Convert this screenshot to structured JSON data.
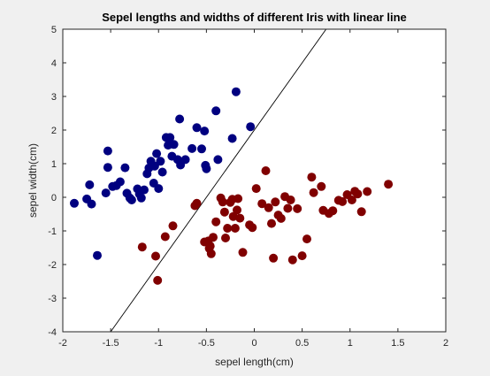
{
  "chart_data": {
    "type": "scatter",
    "title": "Sepel lengths and widths of different Iris with linear line",
    "xlabel": "sepel length(cm)",
    "ylabel": "sepel width(cm)",
    "xlim": [
      -2,
      2
    ],
    "ylim": [
      -4,
      5
    ],
    "xticks": [
      "-2",
      "-1.5",
      "-1",
      "-0.5",
      "0",
      "0.5",
      "1",
      "1.5",
      "2"
    ],
    "yticks": [
      "-4",
      "-3",
      "-2",
      "-1",
      "0",
      "1",
      "2",
      "3",
      "4",
      "5"
    ],
    "grid": false,
    "legend": "none",
    "colors": {
      "series1": "#000080",
      "series2": "#800000",
      "line": "#000000",
      "background": "#f0f0f0",
      "axes_bg": "#ffffff"
    },
    "series": [
      {
        "marker": "circle",
        "color": "#000080",
        "points": [
          [
            -1.88,
            -0.18
          ],
          [
            -1.75,
            -0.05
          ],
          [
            -1.7,
            -0.2
          ],
          [
            -1.72,
            0.37
          ],
          [
            -1.64,
            -1.73
          ],
          [
            -1.55,
            0.13
          ],
          [
            -1.53,
            1.38
          ],
          [
            -1.53,
            0.89
          ],
          [
            -1.48,
            0.32
          ],
          [
            -1.44,
            0.35
          ],
          [
            -1.4,
            0.46
          ],
          [
            -1.35,
            0.88
          ],
          [
            -1.33,
            0.12
          ],
          [
            -1.3,
            -0.02
          ],
          [
            -1.28,
            -0.08
          ],
          [
            -1.22,
            0.25
          ],
          [
            -1.2,
            0.1
          ],
          [
            -1.18,
            -0.02
          ],
          [
            -1.15,
            0.22
          ],
          [
            -1.12,
            0.7
          ],
          [
            -1.1,
            0.87
          ],
          [
            -1.08,
            1.07
          ],
          [
            -1.05,
            0.42
          ],
          [
            -1.04,
            0.93
          ],
          [
            -1.02,
            1.3
          ],
          [
            -1.0,
            0.26
          ],
          [
            -0.98,
            1.07
          ],
          [
            -0.96,
            0.75
          ],
          [
            -0.92,
            1.78
          ],
          [
            -0.9,
            1.55
          ],
          [
            -0.88,
            1.78
          ],
          [
            -0.86,
            1.22
          ],
          [
            -0.84,
            1.57
          ],
          [
            -0.8,
            1.12
          ],
          [
            -0.78,
            2.33
          ],
          [
            -0.77,
            0.96
          ],
          [
            -0.72,
            1.12
          ],
          [
            -0.65,
            1.45
          ],
          [
            -0.6,
            2.07
          ],
          [
            -0.55,
            1.44
          ],
          [
            -0.52,
            1.97
          ],
          [
            -0.51,
            0.95
          ],
          [
            -0.5,
            0.85
          ],
          [
            -0.4,
            2.57
          ],
          [
            -0.38,
            1.12
          ],
          [
            -0.23,
            1.75
          ],
          [
            -0.19,
            3.14
          ],
          [
            -0.04,
            2.1
          ]
        ]
      },
      {
        "marker": "circle",
        "color": "#800000",
        "points": [
          [
            -1.17,
            -1.48
          ],
          [
            -1.03,
            -1.75
          ],
          [
            -1.01,
            -2.47
          ],
          [
            -0.93,
            -1.17
          ],
          [
            -0.85,
            -0.85
          ],
          [
            -0.62,
            -0.25
          ],
          [
            -0.6,
            -0.18
          ],
          [
            -0.52,
            -1.33
          ],
          [
            -0.48,
            -1.3
          ],
          [
            -0.47,
            -1.52
          ],
          [
            -0.46,
            -1.45
          ],
          [
            -0.45,
            -1.68
          ],
          [
            -0.43,
            -1.19
          ],
          [
            -0.4,
            -0.73
          ],
          [
            -0.35,
            -0.02
          ],
          [
            -0.33,
            -0.14
          ],
          [
            -0.31,
            -0.44
          ],
          [
            -0.3,
            -1.21
          ],
          [
            -0.28,
            -0.92
          ],
          [
            -0.25,
            -0.15
          ],
          [
            -0.23,
            -0.06
          ],
          [
            -0.22,
            -0.57
          ],
          [
            -0.2,
            -0.92
          ],
          [
            -0.18,
            -0.38
          ],
          [
            -0.17,
            -0.04
          ],
          [
            -0.15,
            -0.62
          ],
          [
            -0.12,
            -1.64
          ],
          [
            -0.05,
            -0.82
          ],
          [
            -0.02,
            -0.9
          ],
          [
            0.02,
            0.26
          ],
          [
            0.08,
            -0.19
          ],
          [
            0.12,
            0.79
          ],
          [
            0.15,
            -0.31
          ],
          [
            0.18,
            -0.78
          ],
          [
            0.2,
            -1.81
          ],
          [
            0.22,
            -0.14
          ],
          [
            0.25,
            -0.53
          ],
          [
            0.28,
            -0.63
          ],
          [
            0.32,
            0.02
          ],
          [
            0.35,
            -0.33
          ],
          [
            0.38,
            -0.08
          ],
          [
            0.4,
            -1.86
          ],
          [
            0.45,
            -0.34
          ],
          [
            0.5,
            -1.74
          ],
          [
            0.55,
            -1.24
          ],
          [
            0.6,
            0.6
          ],
          [
            0.62,
            0.14
          ],
          [
            0.7,
            0.32
          ],
          [
            0.72,
            -0.39
          ],
          [
            0.78,
            -0.48
          ],
          [
            0.82,
            -0.4
          ],
          [
            0.88,
            -0.09
          ],
          [
            0.92,
            -0.13
          ],
          [
            0.97,
            0.08
          ],
          [
            1.02,
            -0.08
          ],
          [
            1.05,
            0.18
          ],
          [
            1.08,
            0.1
          ],
          [
            1.12,
            -0.43
          ],
          [
            1.18,
            0.17
          ],
          [
            1.4,
            0.39
          ]
        ]
      }
    ],
    "line": {
      "x": [
        -1.5,
        0.75
      ],
      "y": [
        -4,
        5
      ]
    }
  }
}
